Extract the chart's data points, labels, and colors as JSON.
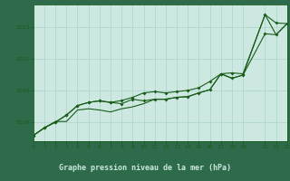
{
  "title": "Graphe pression niveau de la mer (hPa)",
  "plot_bg": "#cce8e0",
  "bottom_bg": "#2d6b4a",
  "label_bg": "#2d6b4a",
  "grid_color": "#aad4c8",
  "line_color": "#1a5c1a",
  "title_color": "#cce8e0",
  "xlim": [
    0,
    23
  ],
  "ylim": [
    1008.4,
    1012.7
  ],
  "yticks": [
    1009,
    1010,
    1011,
    1012
  ],
  "xtick_vals": [
    0,
    1,
    2,
    3,
    4,
    5,
    6,
    7,
    8,
    9,
    10,
    11,
    12,
    13,
    14,
    15,
    16,
    17,
    18,
    19,
    21,
    22,
    23
  ],
  "xtick_labels": [
    "0",
    "1",
    "2",
    "3",
    "4",
    "5",
    "6",
    "7",
    "8",
    "9",
    "10",
    "11",
    "12",
    "13",
    "14",
    "15",
    "16",
    "17",
    "18",
    "19",
    "21",
    "22",
    "23"
  ],
  "s1_x": [
    0,
    1,
    2,
    3,
    4,
    5,
    6,
    7,
    8,
    9,
    10,
    11,
    12,
    13,
    14,
    15,
    16,
    17,
    18,
    19,
    21,
    22,
    23
  ],
  "s1_y": [
    1008.58,
    1008.82,
    1009.0,
    1009.22,
    1009.52,
    1009.62,
    1009.67,
    1009.62,
    1009.68,
    1009.78,
    1009.92,
    1009.96,
    1009.92,
    1009.96,
    1010.0,
    1010.08,
    1010.28,
    1010.52,
    1010.55,
    1010.52,
    1012.38,
    1012.12,
    1012.1
  ],
  "s2_x": [
    0,
    1,
    2,
    3,
    4,
    5,
    6,
    7,
    8,
    9,
    10,
    11,
    12,
    13,
    14,
    15,
    16,
    17,
    18,
    19,
    21,
    22,
    23
  ],
  "s2_y": [
    1008.58,
    1008.82,
    1009.0,
    1009.22,
    1009.52,
    1009.62,
    1009.67,
    1009.62,
    1009.58,
    1009.72,
    1009.67,
    1009.72,
    1009.72,
    1009.78,
    1009.8,
    1009.92,
    1010.02,
    1010.52,
    1010.38,
    1010.48,
    1011.78,
    1011.75,
    1012.1
  ],
  "s3_x": [
    0,
    1,
    2,
    3,
    4,
    5,
    6,
    7,
    8,
    9,
    10,
    11,
    12,
    13,
    14,
    15,
    16,
    17,
    18,
    19,
    21,
    22,
    23
  ],
  "s3_y": [
    1008.58,
    1008.82,
    1009.02,
    1009.02,
    1009.38,
    1009.42,
    1009.38,
    1009.32,
    1009.42,
    1009.48,
    1009.58,
    1009.72,
    1009.72,
    1009.78,
    1009.8,
    1009.92,
    1010.02,
    1010.52,
    1010.38,
    1010.48,
    1012.38,
    1011.75,
    1012.1
  ]
}
